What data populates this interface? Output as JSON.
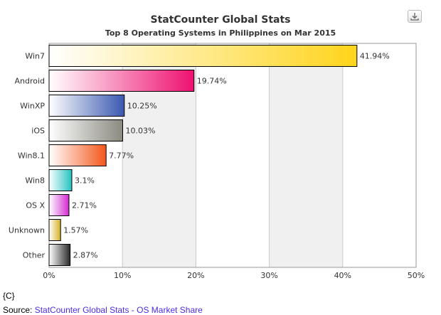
{
  "chart_data": {
    "type": "bar",
    "orientation": "horizontal",
    "title": "StatCounter Global Stats",
    "subtitle": "Top 8 Operating Systems in Philippines on Mar 2015",
    "categories": [
      "Win7",
      "Android",
      "WinXP",
      "iOS",
      "Win8.1",
      "Win8",
      "OS X",
      "Unknown",
      "Other"
    ],
    "values": [
      41.94,
      19.74,
      10.25,
      10.03,
      7.77,
      3.1,
      2.71,
      1.57,
      2.87
    ],
    "value_labels": [
      "41.94%",
      "19.74%",
      "10.25%",
      "10.03%",
      "7.77%",
      "3.1%",
      "2.71%",
      "1.57%",
      "2.87%"
    ],
    "colors": [
      "#ffd41a",
      "#ee1170",
      "#3a58b0",
      "#8a8a80",
      "#f4561a",
      "#22c2c2",
      "#d42ad2",
      "#d4b020",
      "#2a2a2a"
    ],
    "xlim": [
      0,
      50
    ],
    "xticks": [
      "0%",
      "10%",
      "20%",
      "30%",
      "40%",
      "50%"
    ],
    "grid": true
  },
  "footer": {
    "credit": "{C}",
    "source_prefix": "Source: ",
    "source_link": "StatCounter Global Stats - OS Market Share"
  },
  "icons": {
    "download": "download-icon"
  }
}
